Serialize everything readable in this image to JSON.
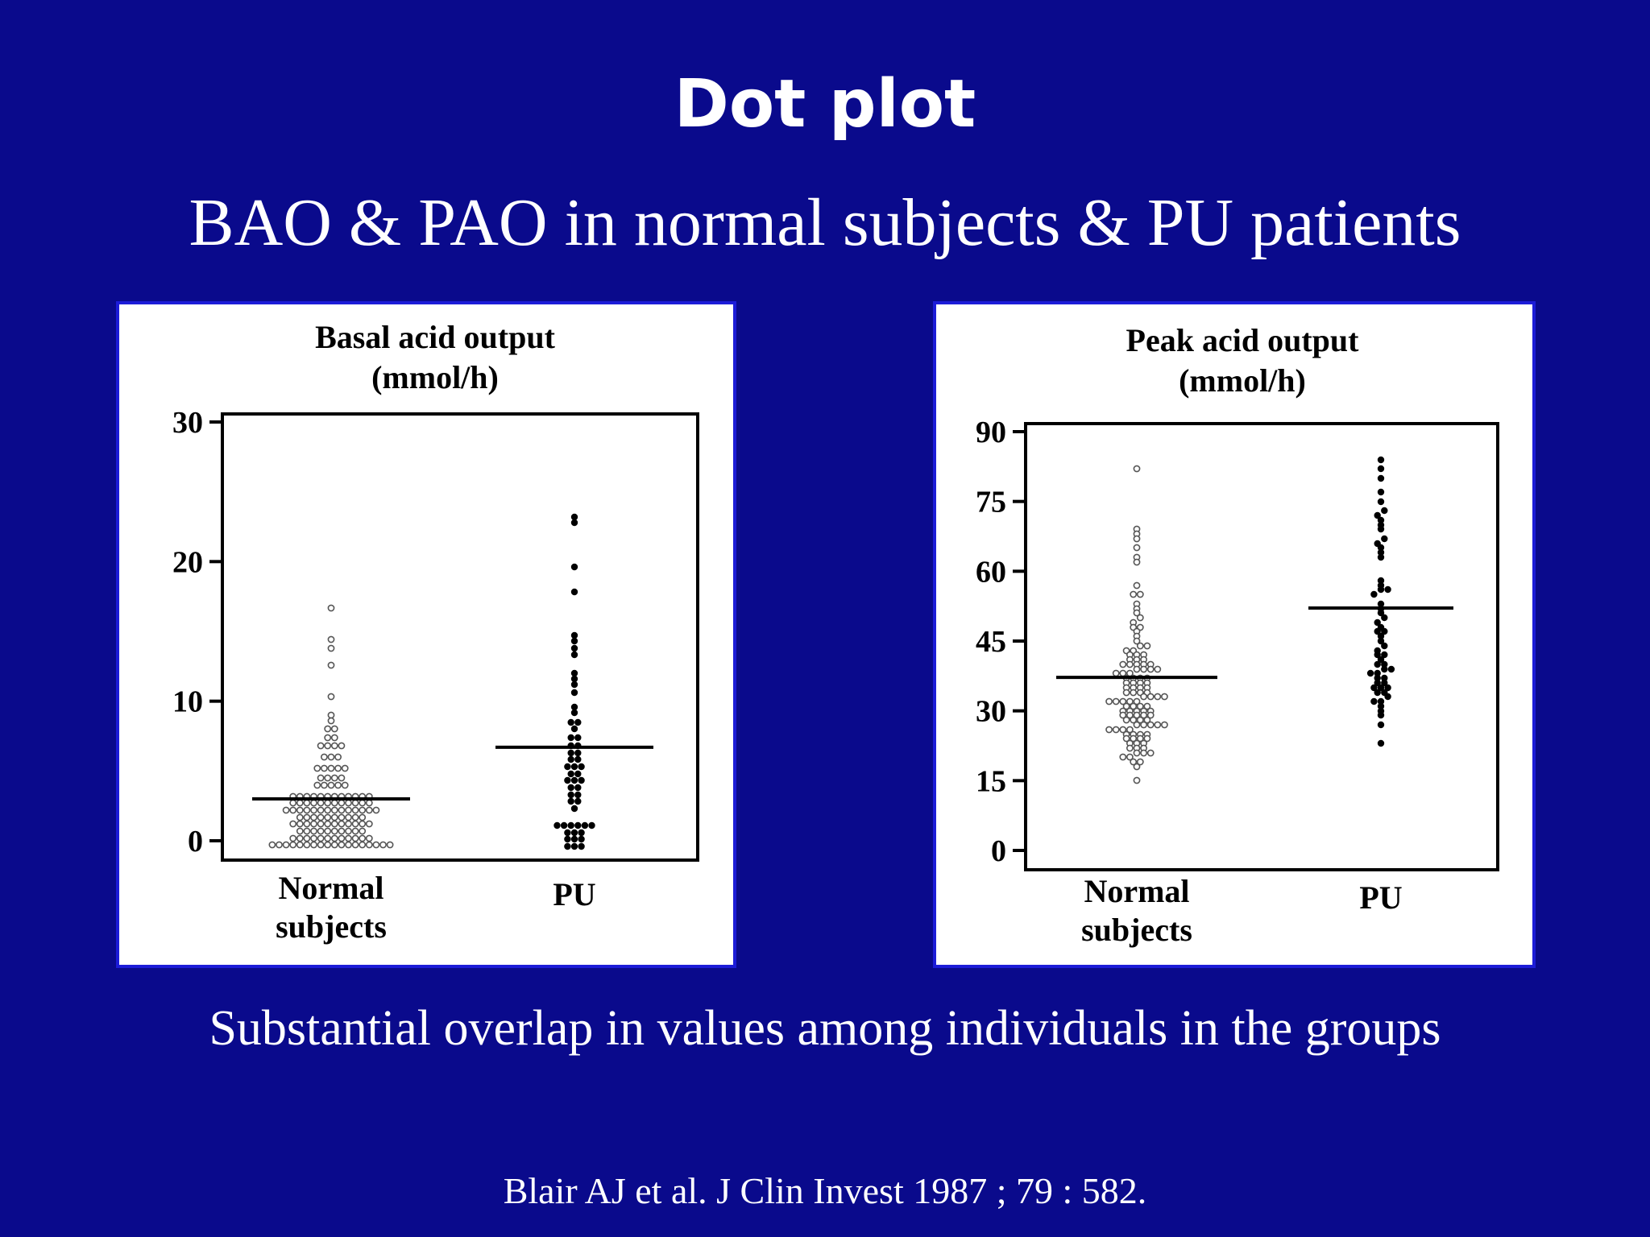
{
  "slide": {
    "title": "Dot plot",
    "subtitle": "BAO & PAO in normal subjects & PU patients",
    "caption": "Substantial overlap in values among individuals in the groups",
    "citation": "Blair AJ et al. J Clin Invest 1987 ; 79 : 582."
  },
  "chart_data": [
    {
      "type": "scatter",
      "title_line1": "Basal acid output",
      "title_line2": "(mmol/h)",
      "ylim": [
        0,
        30
      ],
      "yticks": [
        "0",
        "10",
        "20",
        "30"
      ],
      "ytick_values": [
        0,
        10,
        20,
        30
      ],
      "groups": [
        {
          "label_line1": "Normal",
          "label_line2": "subjects",
          "marker": "open",
          "mean": 3.0,
          "values": [
            -0.3,
            -0.3,
            -0.3,
            -0.3,
            -0.3,
            -0.3,
            -0.3,
            -0.3,
            -0.3,
            -0.3,
            -0.3,
            -0.3,
            -0.3,
            -0.3,
            -0.3,
            -0.3,
            -0.3,
            -0.3,
            0.2,
            0.2,
            0.2,
            0.2,
            0.2,
            0.2,
            0.2,
            0.2,
            0.2,
            0.2,
            0.2,
            0.2,
            0.7,
            0.7,
            0.7,
            0.7,
            0.7,
            0.7,
            0.7,
            0.7,
            0.7,
            0.7,
            1.2,
            1.2,
            1.2,
            1.2,
            1.2,
            1.2,
            1.2,
            1.2,
            1.2,
            1.2,
            1.2,
            1.2,
            1.7,
            1.7,
            1.7,
            1.7,
            1.7,
            1.7,
            1.7,
            1.7,
            1.7,
            1.7,
            2.2,
            2.2,
            2.2,
            2.2,
            2.2,
            2.2,
            2.2,
            2.2,
            2.2,
            2.2,
            2.2,
            2.2,
            2.2,
            2.2,
            2.7,
            2.7,
            2.7,
            2.7,
            2.7,
            2.7,
            2.7,
            2.7,
            2.7,
            2.7,
            2.7,
            2.7,
            3.2,
            3.2,
            3.2,
            3.2,
            3.2,
            3.2,
            3.2,
            3.2,
            3.2,
            3.2,
            3.2,
            3.2,
            4.0,
            4.0,
            4.0,
            4.0,
            4.0,
            4.5,
            4.5,
            4.5,
            4.5,
            5.2,
            5.2,
            5.2,
            5.2,
            5.2,
            6.0,
            6.0,
            6.0,
            6.8,
            6.8,
            6.8,
            6.8,
            7.4,
            7.4,
            8.0,
            8.0,
            8.6,
            9.0,
            10.3,
            12.6,
            13.8,
            14.4,
            16.7
          ]
        },
        {
          "label_line1": "PU",
          "label_line2": "",
          "marker": "filled",
          "mean": 6.7,
          "values": [
            -0.4,
            -0.4,
            -0.4,
            0.1,
            0.1,
            0.1,
            0.6,
            0.6,
            0.6,
            1.1,
            1.1,
            1.1,
            1.1,
            1.1,
            1.1,
            2.3,
            2.8,
            2.8,
            3.3,
            3.3,
            3.8,
            3.8,
            4.3,
            4.3,
            4.3,
            4.8,
            4.8,
            5.3,
            5.3,
            5.3,
            5.8,
            5.8,
            6.3,
            6.3,
            6.8,
            6.8,
            7.4,
            7.4,
            8.0,
            8.5,
            8.5,
            9.2,
            9.6,
            10.6,
            11.2,
            11.6,
            12.0,
            13.3,
            13.8,
            14.3,
            14.7,
            17.8,
            19.6,
            22.8,
            23.2
          ]
        }
      ]
    },
    {
      "type": "scatter",
      "title_line1": "Peak acid output",
      "title_line2": "(mmol/h)",
      "ylim": [
        0,
        90
      ],
      "yticks": [
        "0",
        "15",
        "30",
        "45",
        "60",
        "75",
        "90"
      ],
      "ytick_values": [
        0,
        15,
        30,
        45,
        60,
        75,
        90
      ],
      "groups": [
        {
          "label_line1": "Normal",
          "label_line2": "subjects",
          "marker": "open",
          "mean": 37.2,
          "values": [
            15,
            18,
            19,
            19,
            20,
            20,
            21,
            21,
            21,
            22,
            22,
            22,
            23,
            23,
            23,
            24,
            24,
            24,
            24,
            25,
            25,
            25,
            25,
            26,
            26,
            26,
            26,
            27,
            27,
            27,
            27,
            27,
            28,
            28,
            28,
            28,
            29,
            29,
            29,
            29,
            29,
            30,
            30,
            30,
            30,
            30,
            31,
            31,
            31,
            31,
            32,
            32,
            32,
            32,
            32,
            33,
            33,
            33,
            33,
            34,
            34,
            34,
            34,
            35,
            35,
            35,
            35,
            36,
            36,
            36,
            36,
            37,
            37,
            37,
            37,
            38,
            38,
            38,
            39,
            39,
            39,
            39,
            40,
            40,
            40,
            40,
            40,
            41,
            41,
            41,
            42,
            42,
            42,
            43,
            43,
            44,
            44,
            45,
            46,
            47,
            48,
            48,
            49,
            50,
            51,
            52,
            53,
            55,
            55,
            57,
            62,
            63,
            65,
            67,
            68,
            69,
            82
          ]
        },
        {
          "label_line1": "PU",
          "label_line2": "",
          "marker": "filled",
          "mean": 52.1,
          "values": [
            23,
            27,
            29,
            30,
            31,
            32,
            32,
            33,
            34,
            34,
            35,
            35,
            35,
            36,
            36,
            37,
            37,
            38,
            38,
            39,
            39,
            40,
            40,
            41,
            42,
            42,
            43,
            44,
            45,
            46,
            47,
            47,
            48,
            49,
            50,
            51,
            52,
            53,
            55,
            56,
            56,
            57,
            58,
            63,
            64,
            65,
            66,
            67,
            69,
            70,
            71,
            72,
            73,
            75,
            77,
            80,
            82,
            84
          ]
        }
      ]
    }
  ]
}
